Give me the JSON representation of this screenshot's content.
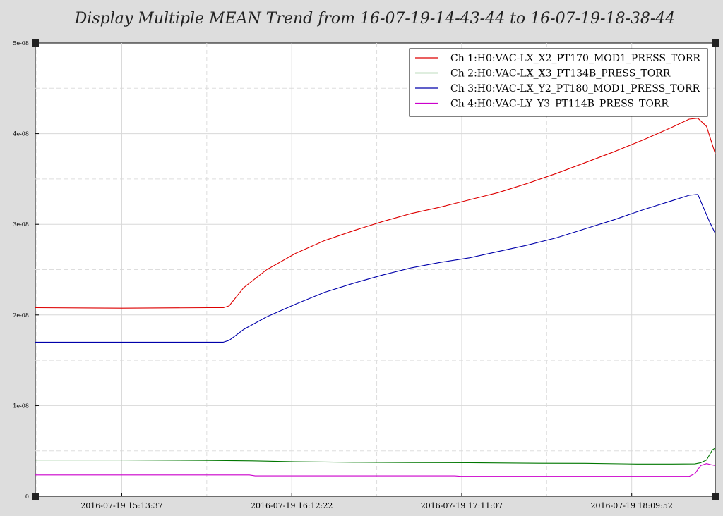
{
  "title": "Display Multiple MEAN Trend from 16-07-19-14-43-44 to 16-07-19-18-38-44",
  "chart_data": {
    "type": "line",
    "title": "Display Multiple MEAN Trend from 16-07-19-14-43-44 to 16-07-19-18-38-44",
    "xlabel": "",
    "ylabel": "",
    "x_unit": "minutes after 2016-07-19 14:43:44",
    "xlim": [
      0,
      235
    ],
    "ylim": [
      0,
      5e-08
    ],
    "yticks": [
      {
        "value": 0,
        "label": "0"
      },
      {
        "value": 1e-08,
        "label": "1e-08"
      },
      {
        "value": 2e-08,
        "label": "2e-08"
      },
      {
        "value": 3e-08,
        "label": "3e-08"
      },
      {
        "value": 4e-08,
        "label": "4e-08"
      },
      {
        "value": 5e-08,
        "label": "5e-08"
      }
    ],
    "xticks": [
      {
        "value": 29.88,
        "label": "2016-07-19 15:13:37"
      },
      {
        "value": 88.63,
        "label": "2016-07-19 16:12:22"
      },
      {
        "value": 147.38,
        "label": "2016-07-19 17:11:07"
      },
      {
        "value": 206.13,
        "label": "2016-07-19 18:09:52"
      }
    ],
    "grid": true,
    "legend_position": "top-right",
    "series": [
      {
        "name": "Ch 1:H0:VAC-LX_X2_PT170_MOD1_PRESS_TORR",
        "color": "#dd0000",
        "x": [
          0,
          30,
          60,
          65,
          67,
          72,
          80,
          90,
          100,
          110,
          120,
          130,
          140,
          150,
          160,
          170,
          180,
          190,
          200,
          210,
          220,
          226,
          229,
          232,
          235
        ],
        "y": [
          2.08e-08,
          2.075e-08,
          2.08e-08,
          2.08e-08,
          2.1e-08,
          2.3e-08,
          2.5e-08,
          2.68e-08,
          2.82e-08,
          2.93e-08,
          3.03e-08,
          3.12e-08,
          3.19e-08,
          3.27e-08,
          3.35e-08,
          3.45e-08,
          3.56e-08,
          3.68e-08,
          3.8e-08,
          3.93e-08,
          4.07e-08,
          4.16e-08,
          4.17e-08,
          4.08e-08,
          3.78e-08
        ]
      },
      {
        "name": "Ch 2:H0:VAC-LX_X3_PT134B_PRESS_TORR",
        "color": "#007700",
        "x": [
          0,
          30,
          60,
          75,
          90,
          110,
          130,
          150,
          170,
          190,
          208,
          220,
          228,
          230,
          232,
          234,
          235
        ],
        "y": [
          4e-09,
          4e-09,
          3.95e-09,
          3.9e-09,
          3.8e-09,
          3.75e-09,
          3.72e-09,
          3.7e-09,
          3.65e-09,
          3.63e-09,
          3.55e-09,
          3.55e-09,
          3.57e-09,
          3.7e-09,
          4e-09,
          5.1e-09,
          5.3e-09
        ]
      },
      {
        "name": "Ch 3:H0:VAC-LX_Y2_PT180_MOD1_PRESS_TORR",
        "color": "#0000aa",
        "x": [
          0,
          30,
          60,
          65,
          67,
          72,
          80,
          90,
          100,
          110,
          120,
          130,
          140,
          150,
          160,
          170,
          180,
          190,
          200,
          210,
          220,
          226,
          229,
          231,
          233,
          235
        ],
        "y": [
          1.7e-08,
          1.7e-08,
          1.7e-08,
          1.7e-08,
          1.72e-08,
          1.84e-08,
          1.98e-08,
          2.12e-08,
          2.25e-08,
          2.35e-08,
          2.44e-08,
          2.52e-08,
          2.58e-08,
          2.63e-08,
          2.7e-08,
          2.77e-08,
          2.85e-08,
          2.95e-08,
          3.05e-08,
          3.16e-08,
          3.26e-08,
          3.32e-08,
          3.33e-08,
          3.18e-08,
          3.03e-08,
          2.9e-08
        ]
      },
      {
        "name": "Ch 4:H0:VAC-LY_Y3_PT114B_PRESS_TORR",
        "color": "#cc00cc",
        "x": [
          0,
          30,
          60,
          74,
          76,
          120,
          145,
          147,
          180,
          200,
          226,
          228,
          230,
          232,
          234,
          235
        ],
        "y": [
          2.35e-09,
          2.35e-09,
          2.35e-09,
          2.35e-09,
          2.25e-09,
          2.25e-09,
          2.25e-09,
          2.2e-09,
          2.2e-09,
          2.2e-09,
          2.2e-09,
          2.5e-09,
          3.4e-09,
          3.6e-09,
          3.45e-09,
          3.4e-09
        ]
      }
    ]
  }
}
